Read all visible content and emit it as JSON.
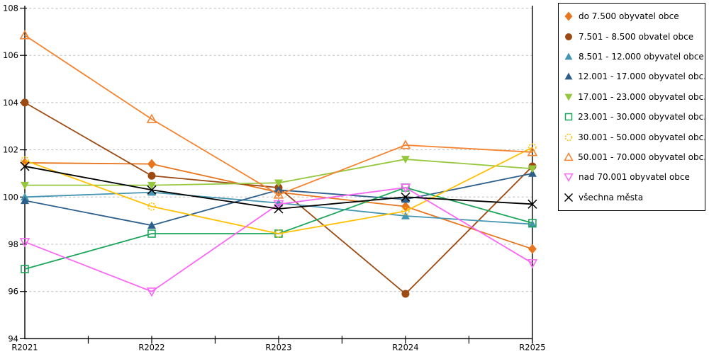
{
  "chart_data": {
    "type": "line",
    "title": "",
    "xlabel": "",
    "ylabel": "",
    "categories": [
      "R2021",
      "R2022",
      "R2023",
      "R2024",
      "R2025"
    ],
    "ylim": [
      94,
      108
    ],
    "ytick_step": 2,
    "yticks": [
      94,
      96,
      98,
      100,
      102,
      104,
      106,
      108
    ],
    "grid": "horizontal-dashed",
    "gridline_color": "#bdbdbd",
    "axis_color": "#000000",
    "legend_position": "right",
    "series": [
      {
        "name": "do 7.500 obyvatel obce",
        "legend_label": "do 7.500 obyvatel obce",
        "color": "#e8761f",
        "marker": "diamond",
        "values": [
          101.45,
          101.4,
          100.2,
          99.6,
          97.8
        ]
      },
      {
        "name": "7.501 - 8.500 obvatel obce",
        "legend_label": "7.501 - 8.500 obvatel obce",
        "color": "#9c4a12",
        "marker": "circle",
        "values": [
          104.0,
          100.9,
          100.4,
          95.9,
          101.3
        ]
      },
      {
        "name": "8.501 - 12.000 obyvatel obce",
        "legend_label": "8.501 - 12.000 obyvatel obce",
        "color": "#4495b1",
        "marker": "triangle-up",
        "values": [
          100.0,
          100.2,
          99.75,
          99.2,
          98.85
        ]
      },
      {
        "name": "12.001 - 17.000 obyvatel obce",
        "legend_label": "12.001 - 17.000 obyvatel obc...",
        "color": "#2e5f8a",
        "marker": "triangle-up",
        "values": [
          99.85,
          98.8,
          100.3,
          99.9,
          101.0
        ]
      },
      {
        "name": "17.001 - 23.000 obyvatel obce",
        "legend_label": "17.001 - 23.000 obyvatel obc...",
        "color": "#95c73d",
        "marker": "triangle-down",
        "values": [
          100.5,
          100.5,
          100.6,
          101.6,
          101.2
        ]
      },
      {
        "name": "23.001 - 30.000 obyvatel obce",
        "legend_label": "23.001 - 30.000 obyvatel obc...",
        "color": "#1ca65b",
        "marker": "square-open",
        "values": [
          96.95,
          98.45,
          98.45,
          100.4,
          98.9
        ]
      },
      {
        "name": "30.001 - 50.000 obyvatel obce",
        "legend_label": "30.001 - 50.000 obyvatel obc...",
        "color": "#ffc003",
        "marker": "circle-dotted",
        "values": [
          101.55,
          99.6,
          98.45,
          99.4,
          102.1
        ]
      },
      {
        "name": "50.001 - 70.000 obyvatel obce",
        "legend_label": "50.001 - 70.000 obyvatel obc...",
        "color": "#f48432",
        "marker": "triangle-up-open",
        "values": [
          106.85,
          103.3,
          100.1,
          102.2,
          101.9
        ]
      },
      {
        "name": "nad 70.001 obyvatel obce",
        "legend_label": "nad 70.001 obyvatel obce",
        "color": "#f969f4",
        "marker": "triangle-down-open",
        "values": [
          98.1,
          96.0,
          99.7,
          100.4,
          97.2
        ]
      },
      {
        "name": "všechna města",
        "legend_label": "všechna města",
        "color": "#000000",
        "marker": "x",
        "values": [
          101.3,
          100.3,
          99.5,
          100.0,
          99.7
        ]
      }
    ]
  }
}
